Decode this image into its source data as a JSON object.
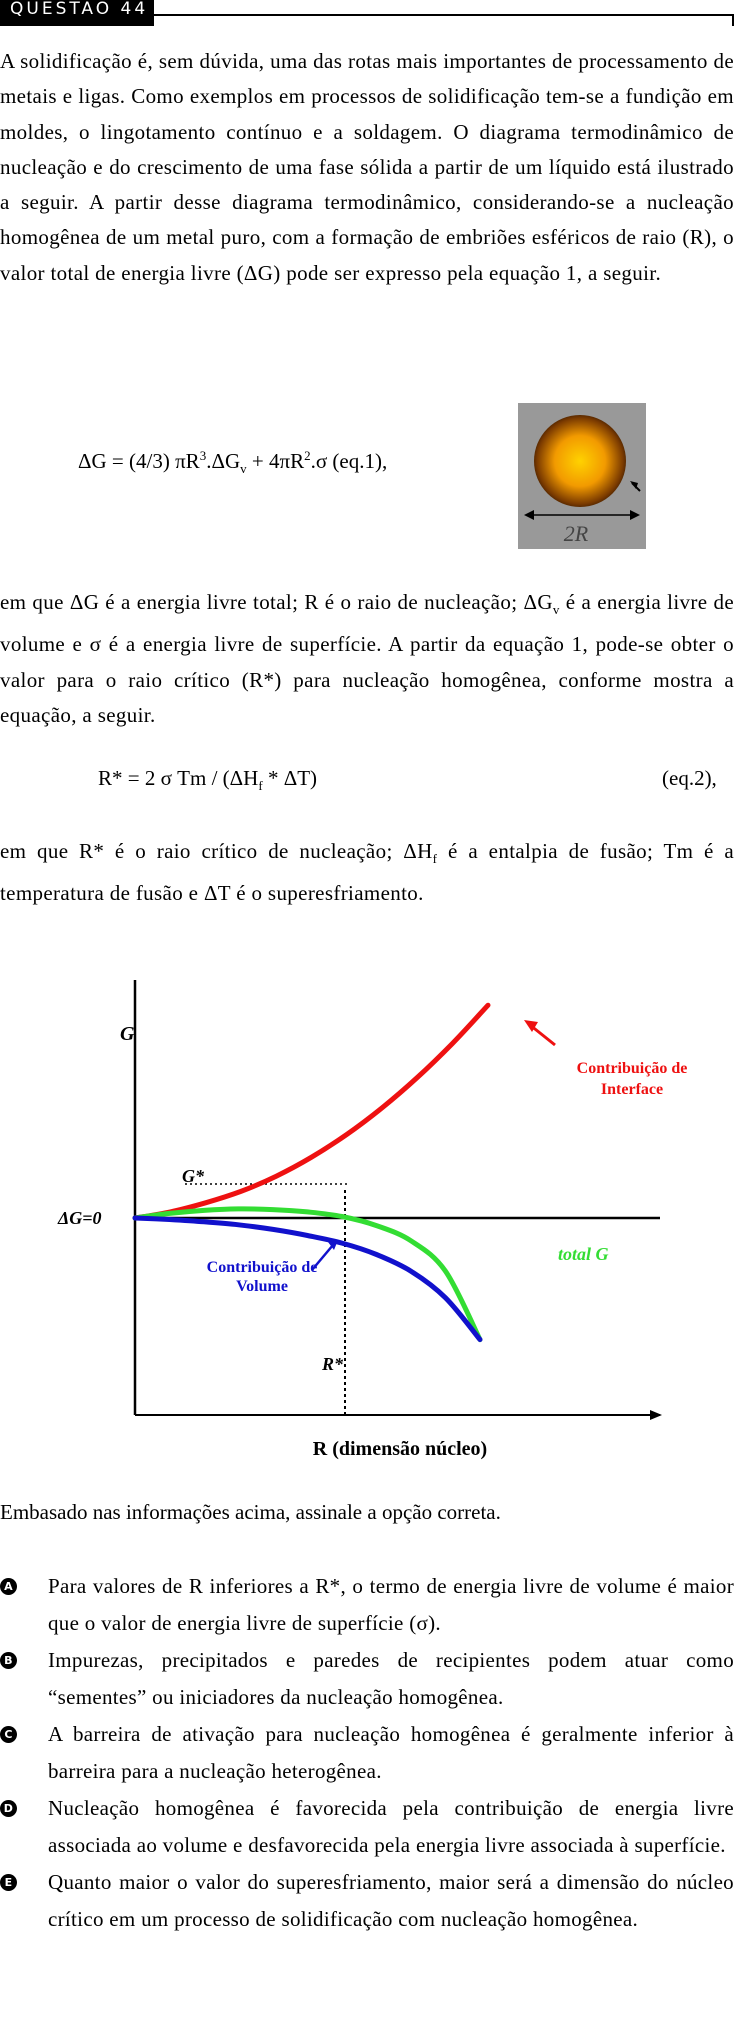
{
  "header": {
    "label": "QUESTÃO 44"
  },
  "intro": "A solidificação é, sem dúvida, uma das rotas mais importantes de processamento de metais e ligas. Como exemplos em processos de solidificação tem-se a fundição em moldes, o lingotamento contínuo e a soldagem. O diagrama termodinâmico de nucleação e do crescimento de uma fase sólida a partir de um líquido está ilustrado a seguir. A partir desse diagrama termodinâmico, considerando-se a nucleação homogênea de um metal puro, com a formação de embriões esféricos de raio (R), o valor total de energia livre (ΔG) pode ser expresso pela equação 1, a seguir.",
  "eq1": {
    "part_a": "ΔG = (4/3) πR",
    "sup_a": "3",
    "part_b": ".ΔG",
    "sub_b": "v",
    "part_c": " + 4πR",
    "sup_c": "2",
    "part_d": ".σ (eq.1),"
  },
  "sphere_label": "2R",
  "para2": {
    "a": "em que ΔG é a energia livre total; R é o raio de nucleação; ΔG",
    "sub": "v",
    "b": " é a energia livre de volume e σ é a energia livre de superfície. A partir da equação 1, pode-se obter o valor para o raio crítico (R*) para nucleação homogênea, conforme mostra a equação, a seguir."
  },
  "eq2": {
    "a": "R* = 2 σ Tm / (ΔH",
    "sub": "f",
    "b": " * ΔT)",
    "num": "(eq.2),"
  },
  "para3": {
    "a": "em que R* é o raio crítico de nucleação; ΔH",
    "sub": "f",
    "b": " é a entalpia de fusão; Tm é a temperatura de fusão e ΔT é o superesfriamento."
  },
  "chart_data": {
    "type": "line",
    "ylabel": "G",
    "xlabel": "R (dimensão núcleo)",
    "zero_label": "ΔG=0",
    "gstar_label": "G*",
    "rstar_label": "R*",
    "series": [
      {
        "name": "Contribuição de Interface",
        "color": "#ee1111",
        "values": [
          0,
          0.08,
          0.2,
          0.35,
          0.55,
          0.8,
          1.1,
          1.45,
          1.85,
          2.3,
          2.8
        ]
      },
      {
        "name": "total G",
        "color": "#33dd33",
        "values": [
          0,
          0.06,
          0.1,
          0.12,
          0.11,
          0.08,
          0.02,
          -0.1,
          -0.3,
          -0.7,
          -1.6
        ]
      },
      {
        "name": "Contribuição de Volume",
        "color": "#1111cc",
        "values": [
          0,
          -0.02,
          -0.05,
          -0.09,
          -0.15,
          -0.23,
          -0.33,
          -0.48,
          -0.7,
          -1.05,
          -1.6
        ]
      }
    ],
    "labels": {
      "interface": [
        "Contribuição de",
        "Interface"
      ],
      "volume": [
        "Contribuição de",
        "Volume"
      ],
      "total": "total G"
    }
  },
  "prompt": "Embasado nas informações acima, assinale a opção correta.",
  "options": [
    {
      "letter": "A",
      "text": "Para valores de R inferiores a R*, o termo de energia livre de volume é maior que o valor de energia livre de superfície (σ)."
    },
    {
      "letter": "B",
      "text": "Impurezas, precipitados e paredes de recipientes podem atuar como “sementes” ou iniciadores da nucleação homogênea."
    },
    {
      "letter": "C",
      "text": "A barreira de ativação para nucleação homogênea é geralmente inferior à barreira para a nucleação heterogênea."
    },
    {
      "letter": "D",
      "text": "Nucleação homogênea é favorecida pela contribuição de energia livre associada ao volume e desfavorecida pela energia livre associada à superfície."
    },
    {
      "letter": "E",
      "text": "Quanto maior o valor do superesfriamento, maior será a dimensão do núcleo crítico em um processo de solidificação com nucleação homogênea."
    }
  ]
}
